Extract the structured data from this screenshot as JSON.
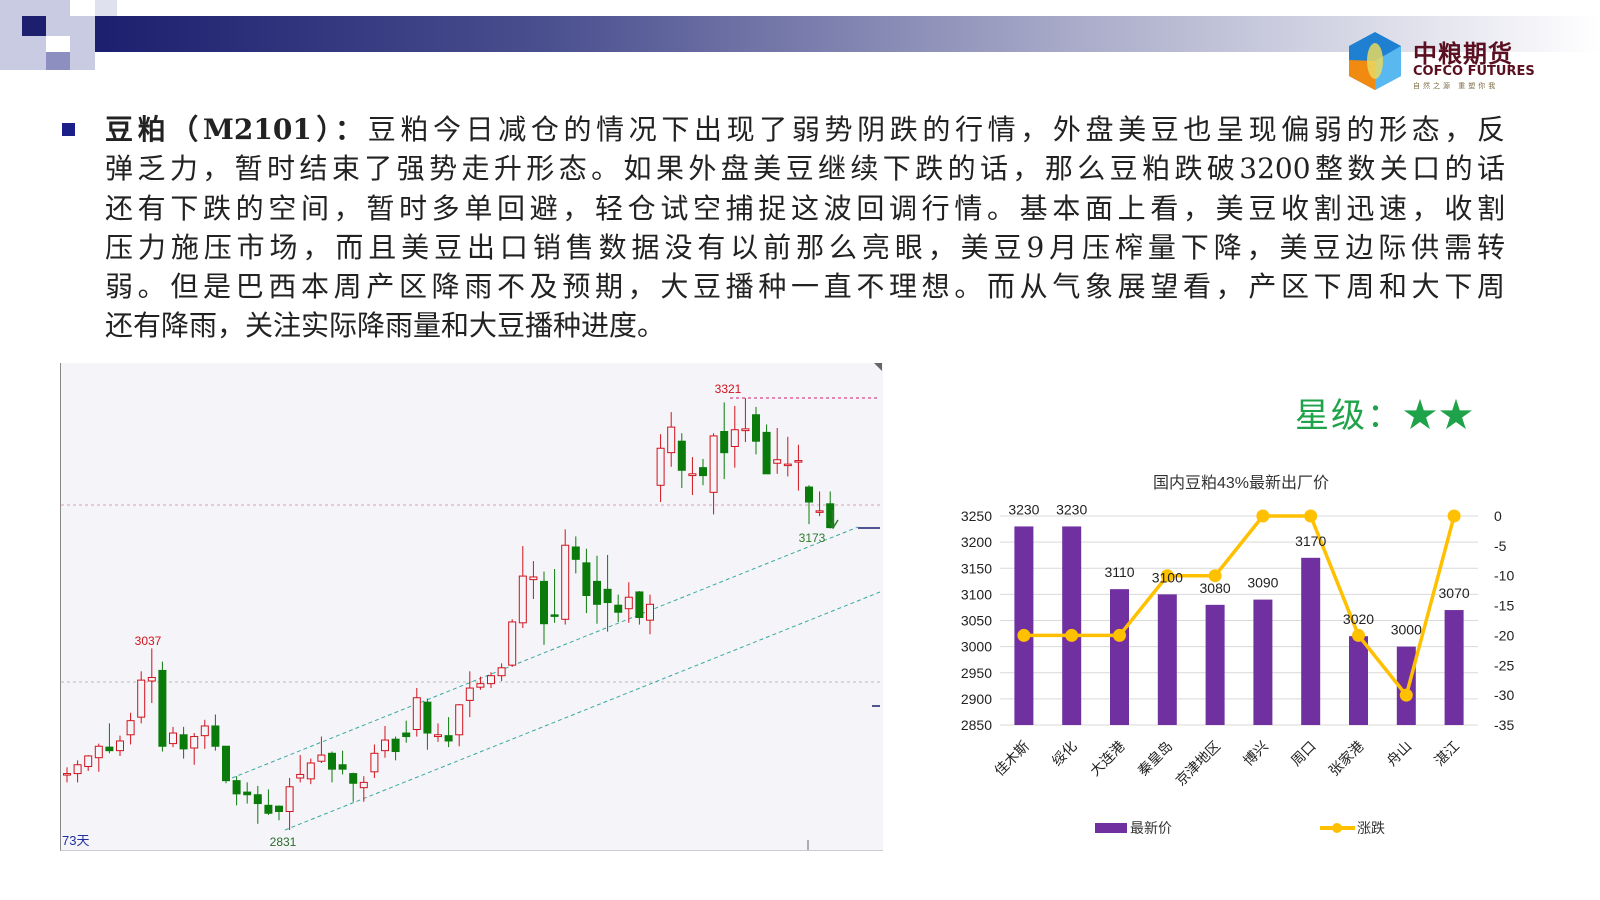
{
  "header": {
    "logo": {
      "cn": "中粮期货",
      "en": "COFCO FUTURES",
      "slogan": "自然之源 重塑你我"
    }
  },
  "commentary": {
    "title": "豆粕（M2101）：",
    "lines": [
      "豆粕今日减仓的情况下出现了弱势阴跌的行情，外盘美豆也呈现偏弱的形态，反",
      "弹乏力，暂时结束了强势走升形态。如果外盘美豆继续下跌的话，那么豆粕跌破3200整数关口的话",
      "还有下跌的空间，暂时多单回避，轻仓试空捕捉这波回调行情。基本面上看，美豆收割迅速，收割",
      "压力施压市场，而且美豆出口销售数据没有以前那么亮眼，美豆9月压榨量下降，美豆边际供需转",
      "弱。但是巴西本周产区降雨不及预期，大豆播种一直不理想。而从气象展望看，产区下周和大下周",
      "还有降雨，关注实际降雨量和大豆播种进度。"
    ]
  },
  "rating": {
    "label": "星级：",
    "stars": "★★",
    "value": 2,
    "color": "#1fa34a"
  },
  "chart_data": [
    {
      "type": "candlestick",
      "period_label": "73天",
      "annotations": {
        "high": "3321",
        "prior_high": "3037",
        "low": "2831",
        "last": "3173"
      },
      "up_color": "#d0121b",
      "down_color": "#0a7a0a",
      "ohlc": [
        [
          2895,
          2902,
          2885,
          2895
        ],
        [
          2895,
          2910,
          2885,
          2905
        ],
        [
          2903,
          2916,
          2898,
          2915
        ],
        [
          2913,
          2929,
          2897,
          2926
        ],
        [
          2925,
          2952,
          2918,
          2921
        ],
        [
          2921,
          2938,
          2915,
          2932
        ],
        [
          2939,
          2964,
          2928,
          2955
        ],
        [
          2959,
          3011,
          2952,
          3001
        ],
        [
          3000,
          3037,
          2975,
          3004
        ],
        [
          3012,
          3022,
          2920,
          2926
        ],
        [
          2929,
          2948,
          2925,
          2941
        ],
        [
          2939,
          2948,
          2912,
          2923
        ],
        [
          2924,
          2941,
          2905,
          2937
        ],
        [
          2938,
          2956,
          2923,
          2949
        ],
        [
          2949,
          2962,
          2921,
          2926
        ],
        [
          2926,
          2926,
          2884,
          2887
        ],
        [
          2887,
          2892,
          2859,
          2872
        ],
        [
          2874,
          2885,
          2861,
          2871
        ],
        [
          2871,
          2881,
          2838,
          2861
        ],
        [
          2859,
          2877,
          2848,
          2850
        ],
        [
          2858,
          2859,
          2842,
          2852
        ],
        [
          2852,
          2890,
          2831,
          2880
        ],
        [
          2890,
          2916,
          2885,
          2894
        ],
        [
          2889,
          2912,
          2883,
          2907
        ],
        [
          2909,
          2937,
          2907,
          2916
        ],
        [
          2918,
          2920,
          2885,
          2900
        ],
        [
          2905,
          2921,
          2894,
          2900
        ],
        [
          2895,
          2896,
          2863,
          2884
        ],
        [
          2879,
          2892,
          2863,
          2885
        ],
        [
          2897,
          2928,
          2890,
          2918
        ],
        [
          2921,
          2949,
          2913,
          2933
        ],
        [
          2934,
          2937,
          2910,
          2920
        ],
        [
          2941,
          2955,
          2930,
          2937
        ],
        [
          2945,
          2992,
          2937,
          2981
        ],
        [
          2976,
          2980,
          2922,
          2941
        ],
        [
          2937,
          2952,
          2931,
          2939
        ],
        [
          2938,
          2959,
          2925,
          2932
        ],
        [
          2939,
          2974,
          2926,
          2973
        ],
        [
          2978,
          3011,
          2959,
          2992
        ],
        [
          2993,
          3005,
          2990,
          2997
        ],
        [
          2997,
          3010,
          2992,
          3006
        ],
        [
          3006,
          3020,
          3000,
          3015
        ],
        [
          3018,
          3070,
          3016,
          3067
        ],
        [
          3066,
          3153,
          3060,
          3119
        ],
        [
          3115,
          3136,
          3093,
          3118
        ],
        [
          3113,
          3124,
          3041,
          3065
        ],
        [
          3075,
          3127,
          3066,
          3074
        ],
        [
          3070,
          3172,
          3064,
          3154
        ],
        [
          3152,
          3164,
          3122,
          3138
        ],
        [
          3134,
          3150,
          3077,
          3097
        ],
        [
          3113,
          3142,
          3065,
          3087
        ],
        [
          3104,
          3143,
          3056,
          3089
        ],
        [
          3086,
          3098,
          3067,
          3078
        ],
        [
          3082,
          3112,
          3066,
          3095
        ],
        [
          3101,
          3102,
          3064,
          3072
        ],
        [
          3069,
          3098,
          3053,
          3087
        ],
        [
          3222,
          3280,
          3203,
          3264
        ],
        [
          3259,
          3305,
          3243,
          3288
        ],
        [
          3272,
          3281,
          3219,
          3239
        ],
        [
          3233,
          3254,
          3211,
          3235
        ],
        [
          3242,
          3252,
          3222,
          3233
        ],
        [
          3214,
          3281,
          3189,
          3278
        ],
        [
          3283,
          3316,
          3229,
          3259
        ],
        [
          3266,
          3312,
          3242,
          3285
        ],
        [
          3284,
          3321,
          3271,
          3286
        ],
        [
          3302,
          3311,
          3257,
          3272
        ],
        [
          3282,
          3291,
          3235,
          3235
        ],
        [
          3247,
          3287,
          3235,
          3251
        ],
        [
          3246,
          3277,
          3232,
          3246
        ],
        [
          3249,
          3268,
          3216,
          3250
        ],
        [
          3220,
          3222,
          3178,
          3203
        ],
        [
          3193,
          3215,
          3187,
          3193
        ],
        [
          3201,
          3215,
          3173,
          3174
        ]
      ]
    },
    {
      "type": "bar+line",
      "title": "国内豆粕43%最新出厂价",
      "categories": [
        "佳木斯",
        "绥化",
        "大连港",
        "秦皇岛",
        "京津地区",
        "博兴",
        "周口",
        "张家港",
        "舟山",
        "湛江"
      ],
      "series": [
        {
          "name": "最新价",
          "type": "bar",
          "axis": "left",
          "color": "#7030a0",
          "values": [
            3230,
            3230,
            3110,
            3100,
            3080,
            3090,
            3170,
            3020,
            3000,
            3070
          ]
        },
        {
          "name": "涨跌",
          "type": "line",
          "axis": "right",
          "color": "#ffc000",
          "values": [
            -20,
            -20,
            -20,
            -10,
            -10,
            0,
            0,
            -20,
            -30,
            0
          ]
        }
      ],
      "ylim_left": [
        2850,
        3250
      ],
      "yticks_left": [
        "3250",
        "3200",
        "3150",
        "3100",
        "3050",
        "3000",
        "2950",
        "2900",
        "2850"
      ],
      "ylim_right": [
        -35,
        0
      ],
      "yticks_right": [
        "0",
        "-5",
        "-10",
        "-15",
        "-20",
        "-25",
        "-30",
        "-35"
      ],
      "grid": true,
      "legend": "bottom"
    }
  ]
}
